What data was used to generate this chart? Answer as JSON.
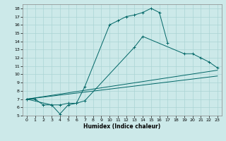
{
  "xlabel": "Humidex (Indice chaleur)",
  "bg_color": "#cce9e9",
  "grid_color": "#aad4d4",
  "line_color": "#006666",
  "xlim": [
    -0.5,
    23.5
  ],
  "ylim": [
    5,
    18.5
  ],
  "xticks": [
    0,
    1,
    2,
    3,
    4,
    5,
    6,
    7,
    8,
    9,
    10,
    11,
    12,
    13,
    14,
    15,
    16,
    17,
    18,
    19,
    20,
    21,
    22,
    23
  ],
  "yticks": [
    5,
    6,
    7,
    8,
    9,
    10,
    11,
    12,
    13,
    14,
    15,
    16,
    17,
    18
  ],
  "line1_x": [
    0,
    1,
    2,
    3,
    4,
    5,
    6,
    7,
    10,
    11,
    12,
    13,
    14,
    15,
    16,
    17
  ],
  "line1_y": [
    7.0,
    7.0,
    6.3,
    6.3,
    5.2,
    6.3,
    6.5,
    8.5,
    16.0,
    16.5,
    17.0,
    17.2,
    17.5,
    18.0,
    17.5,
    13.8
  ],
  "line2_x": [
    0,
    3,
    4,
    5,
    6,
    7,
    13,
    14,
    19,
    20,
    21,
    22,
    23
  ],
  "line2_y": [
    7.0,
    6.3,
    6.3,
    6.5,
    6.5,
    6.8,
    13.3,
    14.6,
    12.5,
    12.5,
    12.0,
    11.5,
    10.8
  ],
  "line3_x": [
    0,
    23
  ],
  "line3_y": [
    7.0,
    10.5
  ],
  "line4_x": [
    0,
    23
  ],
  "line4_y": [
    7.0,
    9.8
  ]
}
